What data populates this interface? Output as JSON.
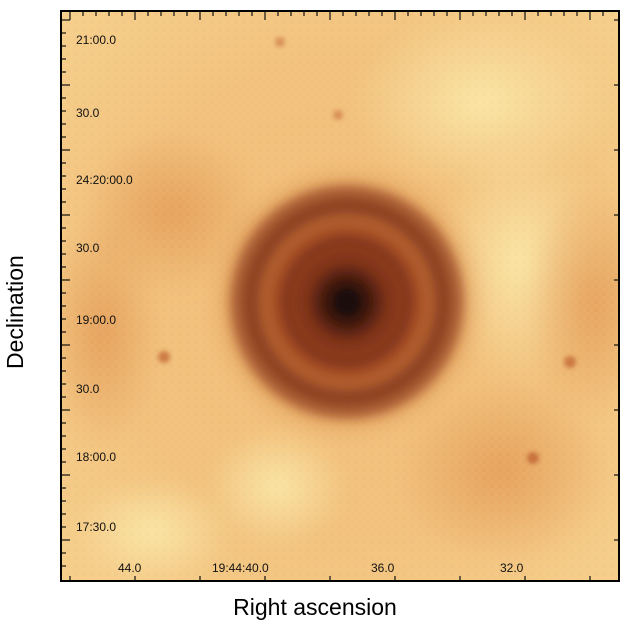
{
  "figure": {
    "x_axis_label": "Right ascension",
    "y_axis_label": "Declination",
    "y_tick_labels": [
      "21:00.0",
      "30.0",
      "24:20:00.0",
      "30.0",
      "19:00.0",
      "30.0",
      "18:00.0",
      "17:30.0"
    ],
    "x_tick_labels": [
      "44.0",
      "19:44:40.0",
      "36.0",
      "32.0"
    ],
    "colors": {
      "background_light": "#f6d993",
      "background_mid": "#f1b56e",
      "nebula_outer": "#c26a35",
      "nebula_ring": "#8f3d1d",
      "core": "#1a0a08"
    }
  }
}
